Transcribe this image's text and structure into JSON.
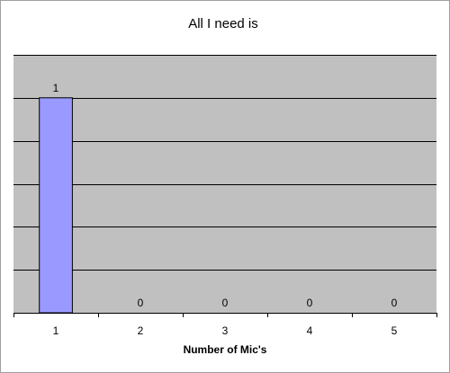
{
  "chart_data": {
    "type": "bar",
    "title": "All I need is",
    "xlabel": "Number of Mic's",
    "ylabel": "",
    "categories": [
      "1",
      "2",
      "3",
      "4",
      "5"
    ],
    "values": [
      1,
      0,
      0,
      0,
      0
    ],
    "data_labels": [
      "1",
      "0",
      "0",
      "0",
      "0"
    ],
    "ylim": [
      0,
      1.2
    ],
    "y_gridlines": [
      0.2,
      0.4,
      0.6,
      0.8,
      1.0,
      1.2
    ],
    "grid": true,
    "legend": "none",
    "colors": {
      "bar_fill": "#9999ff",
      "bar_stroke": "#000000",
      "plot_background": "#c0c0c0",
      "gridline": "#000000",
      "chart_border": "#a0a0a0",
      "background": "#ffffff"
    }
  }
}
